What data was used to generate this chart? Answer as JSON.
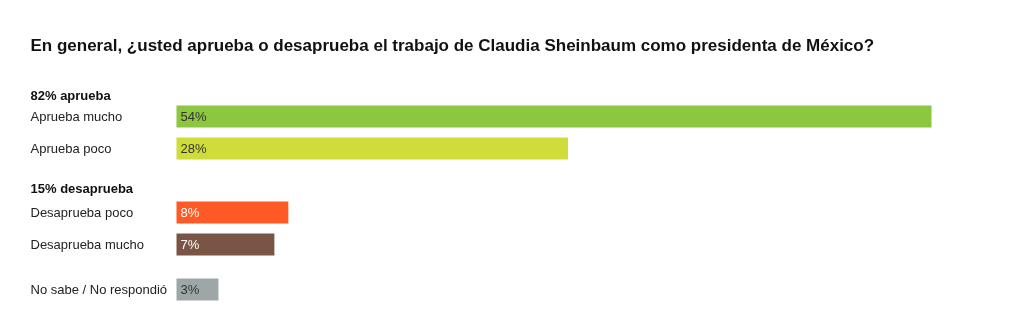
{
  "chart_data": {
    "type": "bar",
    "orientation": "horizontal",
    "title": "En general, ¿usted aprueba o desaprueba el trabajo de Claudia Sheinbaum como presidenta de México?",
    "categories": [
      "Aprueba mucho",
      "Aprueba poco",
      "Desaprueba poco",
      "Desaprueba mucho",
      "No sabe / No respondió"
    ],
    "values": [
      54,
      28,
      8,
      7,
      3
    ],
    "colors": [
      "#8dc63f",
      "#cfdc3a",
      "#ff5a26",
      "#7a5444",
      "#9ea7a8"
    ],
    "value_labels": [
      "54%",
      "28%",
      "8%",
      "7%",
      "3%"
    ],
    "annotations": [
      "82% aprueba",
      "15% desaprueba"
    ]
  }
}
